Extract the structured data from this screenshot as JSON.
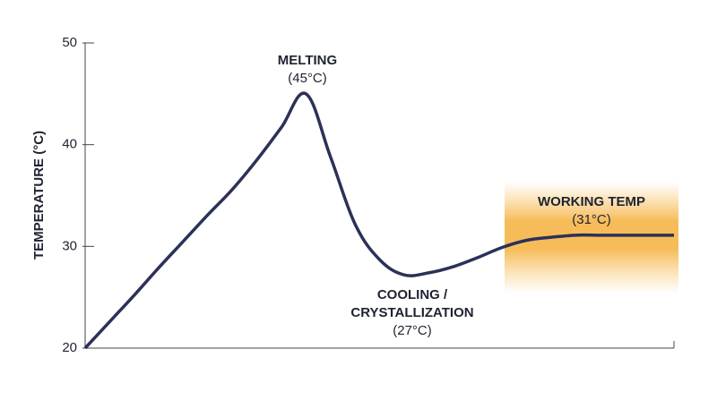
{
  "chart_data": {
    "type": "line",
    "y_label": "TEMPERATURE (°C)",
    "categories": [
      null,
      null,
      null,
      null,
      null,
      null,
      null,
      null,
      null,
      null,
      null,
      null,
      null,
      null,
      null,
      null,
      null,
      null,
      null,
      null,
      null,
      null,
      null,
      null,
      null
    ],
    "values": [
      20,
      22.6,
      25.2,
      27.9,
      30.5,
      33.1,
      35.6,
      38.5,
      41.7,
      45,
      38.8,
      32.2,
      28.7,
      27.2,
      27.4,
      28.0,
      28.9,
      29.9,
      30.6,
      30.9,
      31.1,
      31.1,
      31.1,
      31.1,
      31.1
    ],
    "color": "#2b3157",
    "ylim": [
      20,
      50
    ],
    "yticks": [
      20,
      30,
      40,
      50
    ],
    "annotations": [
      {
        "lines": [
          "MELTING",
          "(45°C)"
        ]
      },
      {
        "lines": [
          "COOLING /",
          "CRYSTALLIZATION",
          "(27°C)"
        ]
      },
      {
        "lines": [
          "WORKING TEMP",
          "(31°C)"
        ]
      }
    ]
  }
}
